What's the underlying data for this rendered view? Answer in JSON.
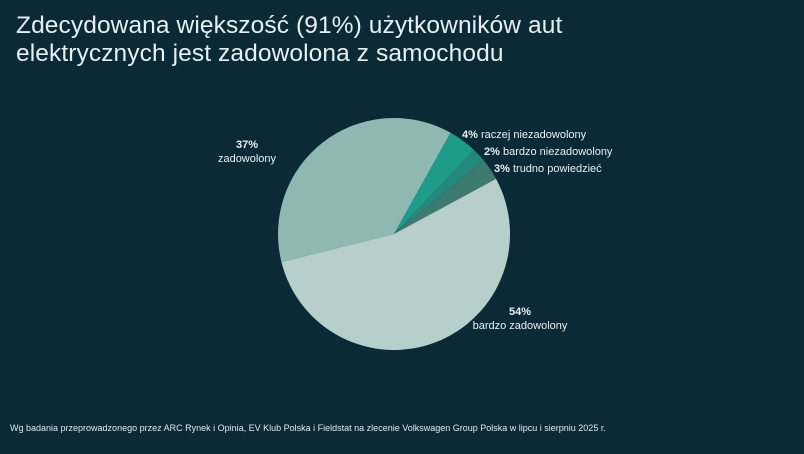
{
  "title": {
    "line1": "Zdecydowana większość (91%) użytkowników aut",
    "line2": "elektrycznych jest zadowolona z samochodu"
  },
  "labels": {
    "zadowolony": {
      "pct": "37%",
      "text": "zadowolony"
    },
    "raczej_niezadowolony": {
      "pct": "4%",
      "text": "raczej niezadowolony"
    },
    "bardzo_niezadowolony": {
      "pct": "2%",
      "text": "bardzo niezadowolony"
    },
    "trudno_powiedziec": {
      "pct": "3%",
      "text": "trudno powiedzieć"
    },
    "bardzo_zadowolony": {
      "pct": "54%",
      "text": "bardzo zadowolony"
    }
  },
  "footnote": "Wg badania przeprowadzonego przez ARC Rynek i Opinia, EV Klub Polska i Fieldstat na zlecenie Volkswagen Group Polska w lipcu i sierpniu 2025 r.",
  "colors": {
    "background": "#0c2a36",
    "zadowolony": "#8fb8b2",
    "raczej_niezadowolony": "#1f9b8a",
    "bardzo_niezadowolony": "#23897c",
    "trudno_powiedziec": "#3d7a72",
    "bardzo_zadowolony": "#b6cfcb"
  },
  "chart_data": {
    "type": "pie",
    "title": "Zdecydowana większość (91%) użytkowników aut elektrycznych jest zadowolona z samochodu",
    "categories": [
      "zadowolony",
      "raczej niezadowolony",
      "bardzo niezadowolony",
      "trudno powiedzieć",
      "bardzo zadowolony"
    ],
    "values": [
      37,
      4,
      2,
      3,
      54
    ],
    "unit": "%",
    "colors": [
      "#8fb8b2",
      "#1f9b8a",
      "#23897c",
      "#3d7a72",
      "#b6cfcb"
    ],
    "start_angle_deg": -104,
    "direction": "clockwise",
    "legend": "none (direct labels)",
    "footnote": "Wg badania przeprowadzonego przez ARC Rynek i Opinia, EV Klub Polska i Fieldstat na zlecenie Volkswagen Group Polska w lipcu i sierpniu 2025 r."
  }
}
